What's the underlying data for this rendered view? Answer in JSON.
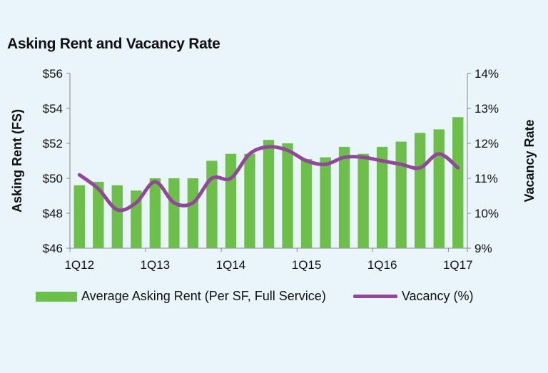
{
  "chart_data": {
    "type": "bar",
    "title": "Asking Rent and Vacancy Rate",
    "ylabel": "Asking Rent (FS)",
    "y2label": "Vacancy Rate",
    "ylim": [
      46,
      56
    ],
    "y2lim": [
      9,
      14
    ],
    "yticks": [
      "$46",
      "$48",
      "$50",
      "$52",
      "$54",
      "$56"
    ],
    "y2ticks": [
      "9%",
      "10%",
      "11%",
      "12%",
      "13%",
      "14%"
    ],
    "xticks": [
      "1Q12",
      "1Q13",
      "1Q14",
      "1Q15",
      "1Q16",
      "1Q17"
    ],
    "categories": [
      "1Q12",
      "2Q12",
      "3Q12",
      "4Q12",
      "1Q13",
      "2Q13",
      "3Q13",
      "4Q13",
      "1Q14",
      "2Q14",
      "3Q14",
      "4Q14",
      "1Q15",
      "2Q15",
      "3Q15",
      "4Q15",
      "1Q16",
      "2Q16",
      "3Q16",
      "4Q16",
      "1Q17"
    ],
    "series": [
      {
        "name": "Average Asking Rent (Per SF, Full Service)",
        "type": "bar",
        "axis": "left",
        "color": "#6cc04a",
        "values": [
          49.6,
          49.8,
          49.6,
          49.3,
          50.0,
          50.0,
          50.0,
          51.0,
          51.4,
          51.4,
          52.2,
          52.0,
          51.1,
          51.2,
          51.8,
          51.4,
          51.8,
          52.1,
          52.6,
          52.8,
          53.5
        ]
      },
      {
        "name": "Vacancy (%)",
        "type": "line",
        "axis": "right",
        "color": "#93479b",
        "values": [
          11.1,
          10.7,
          10.1,
          10.3,
          10.9,
          10.3,
          10.3,
          11.0,
          11.0,
          11.7,
          11.9,
          11.8,
          11.5,
          11.4,
          11.6,
          11.6,
          11.5,
          11.4,
          11.3,
          11.7,
          11.3
        ]
      }
    ],
    "legend": "bottom",
    "grid": false
  }
}
